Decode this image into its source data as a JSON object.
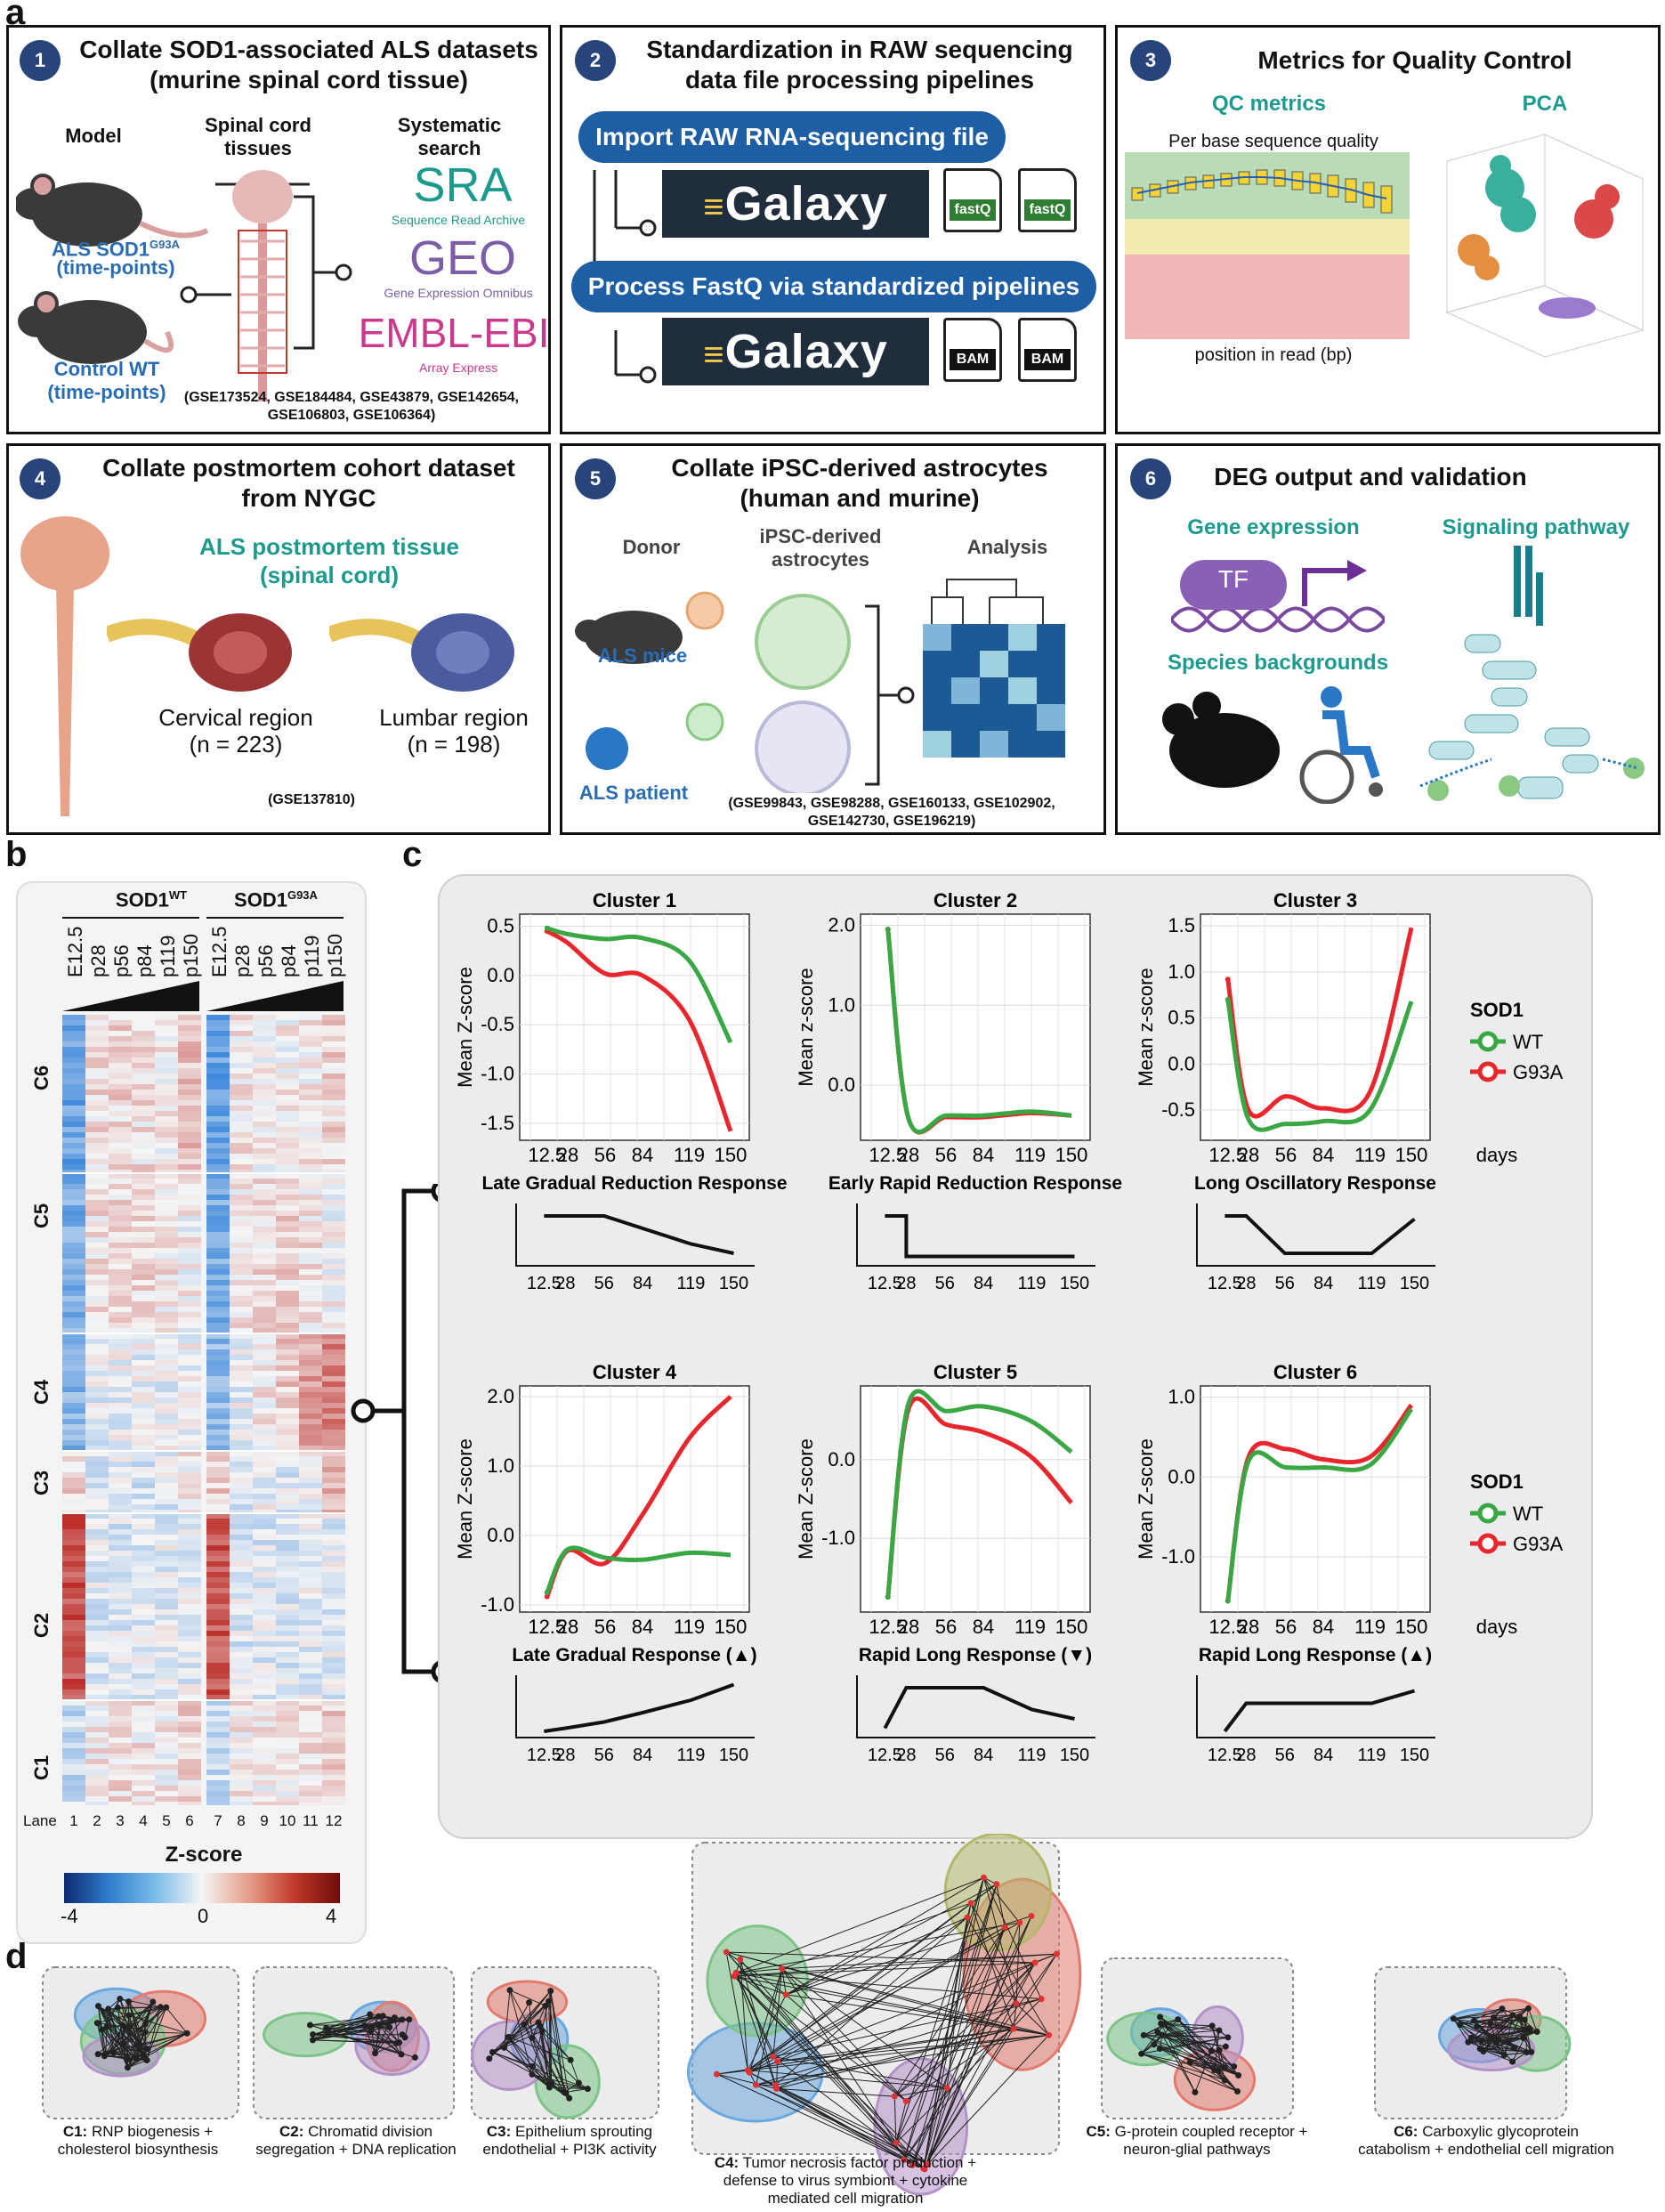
{
  "panels": {
    "a": "a",
    "b": "b",
    "c": "c",
    "d": "d"
  },
  "box1": {
    "num": "1",
    "title_l1": "Collate SOD1-associated ALS datasets",
    "title_l2": "(murine spinal cord tissue)",
    "model": "Model",
    "spinal_l1": "Spinal cord",
    "spinal_l2": "tissues",
    "search_l1": "Systematic",
    "search_l2": "search",
    "als_l1": "ALS SOD1",
    "als_sup": "G93A",
    "als_l2": "(time-points)",
    "ctrl_l1": "Control WT",
    "ctrl_l2": "(time-points)",
    "sra": "SRA",
    "sra_sub": "Sequence Read Archive",
    "geo": "GEO",
    "geo_sub": "Gene Expression Omnibus",
    "embl": "EMBL-EBI",
    "embl_sub": "Array Express",
    "acc_l1": "(GSE173524, GSE184484, GSE43879, GSE142654,",
    "acc_l2": "GSE106803, GSE106364)"
  },
  "box2": {
    "num": "2",
    "title_l1": "Standardization in RAW sequencing",
    "title_l2": "data file processing pipelines",
    "pill1": "Import RAW RNA-sequencing file",
    "pill2": "Process FastQ via standardized pipelines",
    "galaxy": "Galaxy",
    "f1": "fastQ",
    "f2": "fastQ",
    "f3": "BAM",
    "f4": "BAM"
  },
  "box3": {
    "num": "3",
    "title": "Metrics for Quality Control",
    "qc": "QC metrics",
    "pca": "PCA",
    "perbase": "Per base sequence quality",
    "position": "position in read (bp)"
  },
  "box4": {
    "num": "4",
    "title_l1": "Collate postmortem cohort dataset",
    "title_l2": "from NYGC",
    "tissue_l1": "ALS postmortem tissue",
    "tissue_l2": "(spinal cord)",
    "cerv": "Cervical region",
    "cerv_n": "(n = 223)",
    "lumb": "Lumbar region",
    "lumb_n": "(n = 198)",
    "acc": "(GSE137810)"
  },
  "box5": {
    "num": "5",
    "title_l1": "Collate iPSC-derived astrocytes",
    "title_l2": "(human and murine)",
    "donor": "Donor",
    "ipsc_l1": "iPSC-derived",
    "ipsc_l2": "astrocytes",
    "analysis": "Analysis",
    "mice": "ALS mice",
    "patient": "ALS patient",
    "acc_l1": "(GSE99843, GSE98288, GSE160133, GSE102902,",
    "acc_l2": "GSE142730, GSE196219)"
  },
  "box6": {
    "num": "6",
    "title": "DEG output and validation",
    "gene_expr": "Gene expression",
    "tf": "TF",
    "signaling": "Signaling pathway",
    "species": "Species backgrounds"
  },
  "heatmap": {
    "wt": "SOD1",
    "wt_sup": "WT",
    "mut": "SOD1",
    "mut_sup": "G93A",
    "timepoints": [
      "E12.5",
      "p28",
      "p56",
      "p84",
      "p119",
      "p150"
    ],
    "lane_label": "Lane",
    "lanes": [
      "1",
      "2",
      "3",
      "4",
      "5",
      "6",
      "7",
      "8",
      "9",
      "10",
      "11",
      "12"
    ],
    "clusters": [
      "C6",
      "C5",
      "C4",
      "C3",
      "C2",
      "C1"
    ],
    "zlabel": "Z-score",
    "zticks": [
      "-4",
      "0",
      "4"
    ]
  },
  "legend": {
    "title": "SOD1",
    "wt": "WT",
    "g93a": "G93A",
    "wt_color": "#3aa745",
    "g93a_color": "#e8262d"
  },
  "days_label": "days",
  "chart_data": [
    {
      "type": "line",
      "title": "Cluster 1",
      "ylabel": "Mean Z-score",
      "x": [
        12.5,
        28,
        56,
        84,
        119,
        150
      ],
      "x_ticks": [
        "12.5",
        "28",
        "56",
        "84",
        "119",
        "150"
      ],
      "yticks": [
        "0.5",
        "0.0",
        "-0.5",
        "-1.0",
        "-1.5"
      ],
      "ylim": [
        -1.6,
        0.55
      ],
      "series": [
        {
          "name": "WT",
          "values": [
            0.48,
            0.42,
            0.37,
            0.38,
            0.15,
            -0.68
          ]
        },
        {
          "name": "G93A",
          "values": [
            0.45,
            0.33,
            0.02,
            0.0,
            -0.45,
            -1.58
          ]
        }
      ],
      "response": "Late Gradual Reduction Response",
      "shape": [
        0.8,
        0.8,
        0.8,
        0.6,
        0.35,
        0.2
      ]
    },
    {
      "type": "line",
      "title": "Cluster 2",
      "ylabel": "Mean z-score",
      "x": [
        12.5,
        28,
        56,
        84,
        119,
        150
      ],
      "x_ticks": [
        "12.5",
        "28",
        "56",
        "84",
        "119",
        "150"
      ],
      "yticks": [
        "2.0",
        "1.0",
        "0.0"
      ],
      "ylim": [
        -0.6,
        2.05
      ],
      "series": [
        {
          "name": "WT",
          "values": [
            1.95,
            -0.42,
            -0.38,
            -0.38,
            -0.33,
            -0.38
          ]
        },
        {
          "name": "G93A",
          "values": [
            1.95,
            -0.42,
            -0.4,
            -0.4,
            -0.35,
            -0.38
          ]
        }
      ],
      "response": "Early Rapid Reduction Response",
      "shape": [
        0.8,
        0.15,
        0.15,
        0.15,
        0.15,
        0.15
      ]
    },
    {
      "type": "line",
      "title": "Cluster 3",
      "ylabel": "Mean z-score",
      "x": [
        12.5,
        28,
        56,
        84,
        119,
        150
      ],
      "x_ticks": [
        "12.5",
        "28",
        "56",
        "84",
        "119",
        "150"
      ],
      "yticks": [
        "1.5",
        "1.0",
        "0.5",
        "0.0",
        "-0.5"
      ],
      "ylim": [
        -0.75,
        1.55
      ],
      "series": [
        {
          "name": "WT",
          "values": [
            0.7,
            -0.6,
            -0.65,
            -0.62,
            -0.5,
            0.68
          ]
        },
        {
          "name": "G93A",
          "values": [
            0.92,
            -0.5,
            -0.35,
            -0.48,
            -0.3,
            1.48
          ]
        }
      ],
      "response": "Long Oscillatory Response",
      "shape": [
        0.8,
        0.8,
        0.2,
        0.2,
        0.2,
        0.75
      ]
    },
    {
      "type": "line",
      "title": "Cluster 4",
      "ylabel": "Mean Z-score",
      "x": [
        12.5,
        28,
        56,
        84,
        119,
        150
      ],
      "x_ticks": [
        "12.5",
        "28",
        "56",
        "84",
        "119",
        "150"
      ],
      "yticks": [
        "2.0",
        "1.0",
        "0.0",
        "-1.0"
      ],
      "ylim": [
        -1.0,
        2.05
      ],
      "series": [
        {
          "name": "WT",
          "values": [
            -0.82,
            -0.2,
            -0.32,
            -0.35,
            -0.25,
            -0.28
          ]
        },
        {
          "name": "G93A",
          "values": [
            -0.88,
            -0.22,
            -0.4,
            0.3,
            1.4,
            2.0
          ]
        }
      ],
      "response": "Late Gradual Response (▲)",
      "shape": [
        0.1,
        0.15,
        0.25,
        0.4,
        0.6,
        0.85
      ]
    },
    {
      "type": "line",
      "title": "Cluster 5",
      "ylabel": "Mean Z-score",
      "x": [
        12.5,
        28,
        56,
        84,
        119,
        150
      ],
      "x_ticks": [
        "12.5",
        "28",
        "56",
        "84",
        "119",
        "150"
      ],
      "yticks": [
        "0.0",
        "-1.0"
      ],
      "ylim": [
        -1.85,
        0.85
      ],
      "series": [
        {
          "name": "WT",
          "values": [
            -1.75,
            0.72,
            0.62,
            0.68,
            0.5,
            0.1
          ]
        },
        {
          "name": "G93A",
          "values": [
            -1.75,
            0.65,
            0.45,
            0.35,
            0.05,
            -0.55
          ]
        }
      ],
      "response": "Rapid Long Response (▼)",
      "shape": [
        0.15,
        0.8,
        0.8,
        0.8,
        0.45,
        0.3
      ]
    },
    {
      "type": "line",
      "title": "Cluster 6",
      "ylabel": "Mean Z-score",
      "x": [
        12.5,
        28,
        56,
        84,
        119,
        150
      ],
      "x_ticks": [
        "12.5",
        "28",
        "56",
        "84",
        "119",
        "150"
      ],
      "yticks": [
        "1.0",
        "0.0",
        "-1.0"
      ],
      "ylim": [
        -1.6,
        1.05
      ],
      "series": [
        {
          "name": "WT",
          "values": [
            -1.55,
            0.2,
            0.12,
            0.12,
            0.15,
            0.85
          ]
        },
        {
          "name": "G93A",
          "values": [
            -1.55,
            0.25,
            0.35,
            0.22,
            0.25,
            0.9
          ]
        }
      ],
      "response": "Rapid Long Response (▲)",
      "shape": [
        0.1,
        0.55,
        0.55,
        0.55,
        0.55,
        0.75
      ]
    }
  ],
  "networks": [
    {
      "bold": "C1:",
      "text_l1": "RNP biogenesis +",
      "text_l2": "cholesterol biosynthesis",
      "text_l3": ""
    },
    {
      "bold": "C2:",
      "text_l1": "Chromatid division",
      "text_l2": "segregation + DNA replication",
      "text_l3": ""
    },
    {
      "bold": "C3:",
      "text_l1": "Epithelium sprouting",
      "text_l2": "endothelial + PI3K activity",
      "text_l3": ""
    },
    {
      "bold": "C4:",
      "text_l1": "Tumor necrosis factor production +",
      "text_l2": "defense to virus symbiont + cytokine",
      "text_l3": "mediated cell migration"
    },
    {
      "bold": "C5:",
      "text_l1": "G-protein coupled receptor +",
      "text_l2": "neuron-glial pathways",
      "text_l3": ""
    },
    {
      "bold": "C6:",
      "text_l1": "Carboxylic glycoprotein",
      "text_l2": "catabolism + endothelial cell migration",
      "text_l3": ""
    }
  ]
}
